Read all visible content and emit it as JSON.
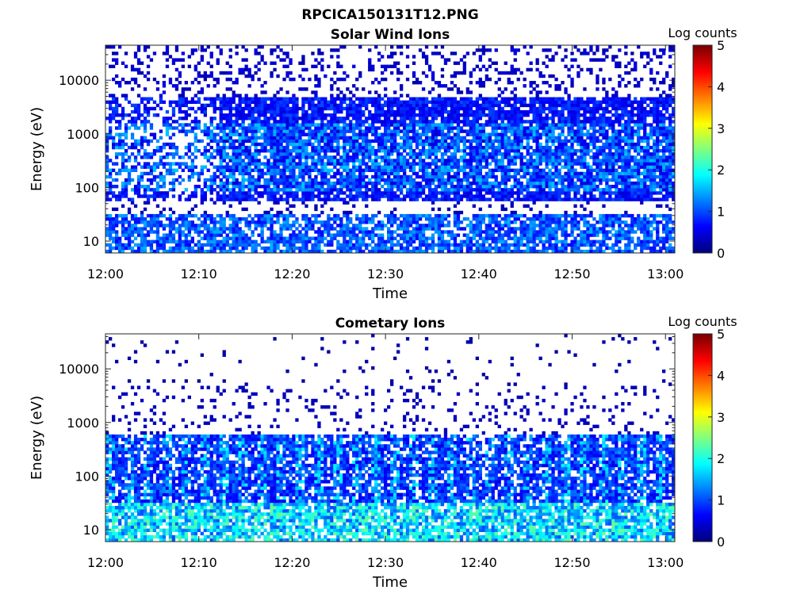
{
  "figure_title": "RPCICA150131T12.PNG",
  "colormap": [
    "#00007f",
    "#0000ff",
    "#007fff",
    "#00ffff",
    "#7fff7f",
    "#ffff00",
    "#ff7f00",
    "#ff0000",
    "#7f0000"
  ],
  "chart_data": [
    {
      "type": "heatmap",
      "title": "Solar Wind Ions",
      "xlabel": "Time",
      "ylabel": "Energy (eV)",
      "x_ticks": [
        "12:00",
        "12:10",
        "12:20",
        "12:30",
        "12:40",
        "12:50",
        "13:00"
      ],
      "x_range": [
        "12:00",
        "13:01"
      ],
      "y_scale": "log",
      "y_ticks": [
        "10",
        "100",
        "1000",
        "10000"
      ],
      "y_range": [
        6,
        45000
      ],
      "colorbar": {
        "label": "Log counts",
        "ticks": [
          "0",
          "1",
          "2",
          "3",
          "4",
          "5"
        ],
        "range": [
          0,
          5
        ]
      },
      "profile": "solarwind"
    },
    {
      "type": "heatmap",
      "title": "Cometary Ions",
      "xlabel": "Time",
      "ylabel": "Energy (eV)",
      "x_ticks": [
        "12:00",
        "12:10",
        "12:20",
        "12:30",
        "12:40",
        "12:50",
        "13:00"
      ],
      "x_range": [
        "12:00",
        "13:01"
      ],
      "y_scale": "log",
      "y_ticks": [
        "10",
        "100",
        "1000",
        "10000"
      ],
      "y_range": [
        6,
        45000
      ],
      "colorbar": {
        "label": "Log counts",
        "ticks": [
          "0",
          "1",
          "2",
          "3",
          "4",
          "5"
        ],
        "range": [
          0,
          5
        ]
      },
      "profile": "cometary"
    }
  ]
}
